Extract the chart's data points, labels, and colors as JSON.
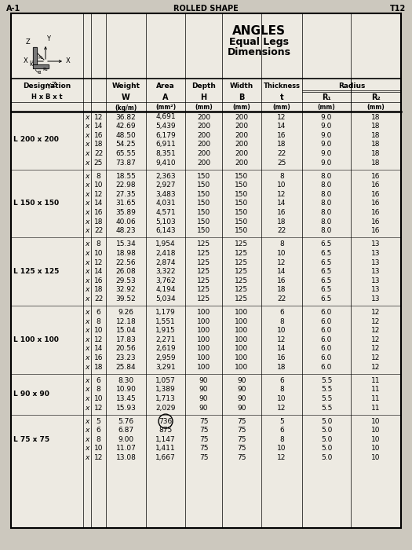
{
  "title": "ANGLES",
  "subtitle1": "Equal Legs",
  "subtitle2": "Dimensions",
  "bg_color": "#ccc8be",
  "table_bg": "#edeae2",
  "groups": [
    {
      "label": "L 200 x 200",
      "rows": [
        [
          "12",
          "36.82",
          "4,691",
          "200",
          "200",
          "12",
          "9.0",
          "18"
        ],
        [
          "14",
          "42.69",
          "5,439",
          "200",
          "200",
          "14",
          "9.0",
          "18"
        ],
        [
          "16",
          "48.50",
          "6,179",
          "200",
          "200",
          "16",
          "9.0",
          "18"
        ],
        [
          "18",
          "54.25",
          "6,911",
          "200",
          "200",
          "18",
          "9.0",
          "18"
        ],
        [
          "22",
          "65.55",
          "8,351",
          "200",
          "200",
          "22",
          "9.0",
          "18"
        ],
        [
          "25",
          "73.87",
          "9,410",
          "200",
          "200",
          "25",
          "9.0",
          "18"
        ]
      ]
    },
    {
      "label": "L 150 x 150",
      "rows": [
        [
          "8",
          "18.55",
          "2,363",
          "150",
          "150",
          "8",
          "8.0",
          "16"
        ],
        [
          "10",
          "22.98",
          "2,927",
          "150",
          "150",
          "10",
          "8.0",
          "16"
        ],
        [
          "12",
          "27.35",
          "3,483",
          "150",
          "150",
          "12",
          "8.0",
          "16"
        ],
        [
          "14",
          "31.65",
          "4,031",
          "150",
          "150",
          "14",
          "8.0",
          "16"
        ],
        [
          "16",
          "35.89",
          "4,571",
          "150",
          "150",
          "16",
          "8.0",
          "16"
        ],
        [
          "18",
          "40.06",
          "5,103",
          "150",
          "150",
          "18",
          "8.0",
          "16"
        ],
        [
          "22",
          "48.23",
          "6,143",
          "150",
          "150",
          "22",
          "8.0",
          "16"
        ]
      ]
    },
    {
      "label": "L 125 x 125",
      "rows": [
        [
          "8",
          "15.34",
          "1,954",
          "125",
          "125",
          "8",
          "6.5",
          "13"
        ],
        [
          "10",
          "18.98",
          "2,418",
          "125",
          "125",
          "10",
          "6.5",
          "13"
        ],
        [
          "12",
          "22.56",
          "2,874",
          "125",
          "125",
          "12",
          "6.5",
          "13"
        ],
        [
          "14",
          "26.08",
          "3,322",
          "125",
          "125",
          "14",
          "6.5",
          "13"
        ],
        [
          "16",
          "29.53",
          "3,762",
          "125",
          "125",
          "16",
          "6.5",
          "13"
        ],
        [
          "18",
          "32.92",
          "4,194",
          "125",
          "125",
          "18",
          "6.5",
          "13"
        ],
        [
          "22",
          "39.52",
          "5,034",
          "125",
          "125",
          "22",
          "6.5",
          "13"
        ]
      ]
    },
    {
      "label": "L 100 x 100",
      "rows": [
        [
          "6",
          "9.26",
          "1,179",
          "100",
          "100",
          "6",
          "6.0",
          "12"
        ],
        [
          "8",
          "12.18",
          "1,551",
          "100",
          "100",
          "8",
          "6.0",
          "12"
        ],
        [
          "10",
          "15.04",
          "1,915",
          "100",
          "100",
          "10",
          "6.0",
          "12"
        ],
        [
          "12",
          "17.83",
          "2,271",
          "100",
          "100",
          "12",
          "6.0",
          "12"
        ],
        [
          "14",
          "20.56",
          "2,619",
          "100",
          "100",
          "14",
          "6.0",
          "12"
        ],
        [
          "16",
          "23.23",
          "2,959",
          "100",
          "100",
          "16",
          "6.0",
          "12"
        ],
        [
          "18",
          "25.84",
          "3,291",
          "100",
          "100",
          "18",
          "6.0",
          "12"
        ]
      ]
    },
    {
      "label": "L 90 x 90",
      "rows": [
        [
          "6",
          "8.30",
          "1,057",
          "90",
          "90",
          "6",
          "5.5",
          "11"
        ],
        [
          "8",
          "10.90",
          "1,389",
          "90",
          "90",
          "8",
          "5.5",
          "11"
        ],
        [
          "10",
          "13.45",
          "1,713",
          "90",
          "90",
          "10",
          "5.5",
          "11"
        ],
        [
          "12",
          "15.93",
          "2,029",
          "90",
          "90",
          "12",
          "5.5",
          "11"
        ]
      ]
    },
    {
      "label": "L 75 x 75",
      "rows": [
        [
          "5",
          "5.76",
          "736",
          "75",
          "75",
          "5",
          "5.0",
          "10"
        ],
        [
          "6",
          "6.87",
          "875",
          "75",
          "75",
          "6",
          "5.0",
          "10"
        ],
        [
          "8",
          "9.00",
          "1,147",
          "75",
          "75",
          "8",
          "5.0",
          "10"
        ],
        [
          "10",
          "11.07",
          "1,411",
          "75",
          "75",
          "10",
          "5.0",
          "10"
        ],
        [
          "12",
          "13.08",
          "1,667",
          "75",
          "75",
          "12",
          "5.0",
          "10"
        ]
      ]
    }
  ],
  "page_header_left": "A-1",
  "page_header_right": "T12"
}
